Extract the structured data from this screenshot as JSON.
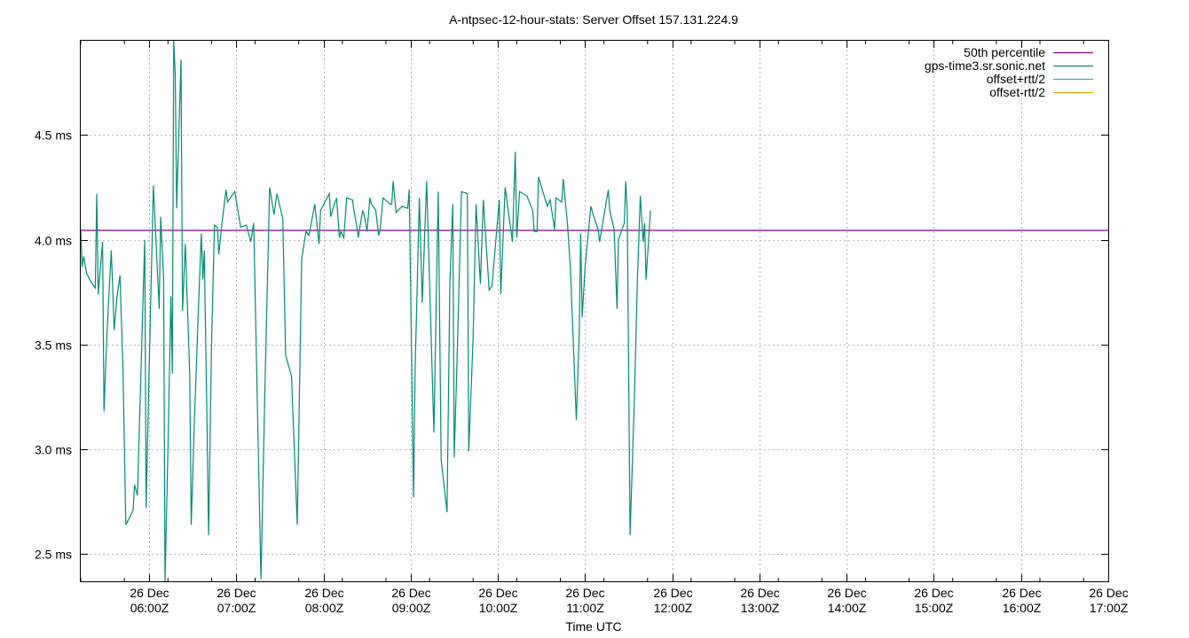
{
  "chart_data": {
    "type": "line",
    "title": "A-ntpsec-12-hour-stats: Server Offset 157.131.224.9",
    "xlabel": "Time UTC",
    "ylabel": "",
    "grid": true,
    "legend_position": "top-right",
    "x_range": [
      "2023-12-26T05:13Z",
      "2023-12-26T17:00Z"
    ],
    "ylim": [
      2.37,
      4.95
    ],
    "y_ticks": [
      {
        "value": 2.5,
        "label": "2.5 ms"
      },
      {
        "value": 3.0,
        "label": "3.0 ms"
      },
      {
        "value": 3.5,
        "label": "3.5 ms"
      },
      {
        "value": 4.0,
        "label": "4.0 ms"
      },
      {
        "value": 4.5,
        "label": "4.5 ms"
      }
    ],
    "x_ticks": [
      {
        "time": "06:00",
        "line1": "26 Dec",
        "line2": "06:00Z"
      },
      {
        "time": "07:00",
        "line1": "26 Dec",
        "line2": "07:00Z"
      },
      {
        "time": "08:00",
        "line1": "26 Dec",
        "line2": "08:00Z"
      },
      {
        "time": "09:00",
        "line1": "26 Dec",
        "line2": "09:00Z"
      },
      {
        "time": "10:00",
        "line1": "26 Dec",
        "line2": "10:00Z"
      },
      {
        "time": "11:00",
        "line1": "26 Dec",
        "line2": "11:00Z"
      },
      {
        "time": "12:00",
        "line1": "26 Dec",
        "line2": "12:00Z"
      },
      {
        "time": "13:00",
        "line1": "26 Dec",
        "line2": "13:00Z"
      },
      {
        "time": "14:00",
        "line1": "26 Dec",
        "line2": "14:00Z"
      },
      {
        "time": "15:00",
        "line1": "26 Dec",
        "line2": "15:00Z"
      },
      {
        "time": "16:00",
        "line1": "26 Dec",
        "line2": "16:00Z"
      },
      {
        "time": "17:00",
        "line1": "26 Dec",
        "line2": "17:00Z"
      }
    ],
    "series": [
      {
        "name": "50th percentile",
        "color": "#800080",
        "points": [
          [
            "05:13",
            4.045
          ],
          [
            "17:00",
            4.045
          ]
        ]
      },
      {
        "name": "gps-time3.sr.sonic.net",
        "color": "#008b74",
        "points": [
          [
            "05:13",
            4.05
          ],
          [
            "05:14",
            3.87
          ],
          [
            "05:15",
            3.92
          ],
          [
            "05:17",
            3.84
          ],
          [
            "05:20",
            3.8
          ],
          [
            "05:23",
            3.77
          ],
          [
            "05:24",
            4.22
          ],
          [
            "05:25",
            3.74
          ],
          [
            "05:28",
            3.99
          ],
          [
            "05:29",
            3.18
          ],
          [
            "05:31",
            3.55
          ],
          [
            "05:34",
            3.95
          ],
          [
            "05:36",
            3.57
          ],
          [
            "05:38",
            3.73
          ],
          [
            "05:40",
            3.83
          ],
          [
            "05:42",
            3.4
          ],
          [
            "05:44",
            2.64
          ],
          [
            "05:47",
            2.68
          ],
          [
            "05:49",
            2.71
          ],
          [
            "05:50",
            2.83
          ],
          [
            "05:52",
            2.78
          ],
          [
            "05:57",
            4.0
          ],
          [
            "05:58",
            2.72
          ],
          [
            "06:00",
            3.37
          ],
          [
            "06:03",
            4.26
          ],
          [
            "06:07",
            3.67
          ],
          [
            "06:08",
            4.11
          ],
          [
            "06:10",
            3.82
          ],
          [
            "06:11",
            2.37
          ],
          [
            "06:13",
            3.0
          ],
          [
            "06:15",
            3.73
          ],
          [
            "06:16",
            3.36
          ],
          [
            "06:17",
            4.95
          ],
          [
            "06:18",
            4.79
          ],
          [
            "06:19",
            4.15
          ],
          [
            "06:22",
            4.86
          ],
          [
            "06:23",
            3.66
          ],
          [
            "06:25",
            3.98
          ],
          [
            "06:28",
            3.36
          ],
          [
            "06:29",
            2.64
          ],
          [
            "06:31",
            3.1
          ],
          [
            "06:34",
            3.68
          ],
          [
            "06:36",
            4.03
          ],
          [
            "06:37",
            3.81
          ],
          [
            "06:38",
            3.95
          ],
          [
            "06:40",
            3.07
          ],
          [
            "06:41",
            2.59
          ],
          [
            "06:43",
            3.5
          ],
          [
            "06:45",
            4.07
          ],
          [
            "06:47",
            4.06
          ],
          [
            "06:48",
            3.93
          ],
          [
            "06:50",
            4.07
          ],
          [
            "06:53",
            4.24
          ],
          [
            "06:54",
            4.18
          ],
          [
            "06:56",
            4.2
          ],
          [
            "06:59",
            4.23
          ],
          [
            "07:03",
            4.06
          ],
          [
            "07:07",
            4.07
          ],
          [
            "07:10",
            3.99
          ],
          [
            "07:12",
            4.08
          ],
          [
            "07:17",
            2.38
          ],
          [
            "07:20",
            3.37
          ],
          [
            "07:23",
            4.25
          ],
          [
            "07:26",
            4.12
          ],
          [
            "07:28",
            4.22
          ],
          [
            "07:32",
            4.1
          ],
          [
            "07:34",
            3.45
          ],
          [
            "07:38",
            3.35
          ],
          [
            "07:42",
            2.64
          ],
          [
            "07:45",
            3.91
          ],
          [
            "07:48",
            4.04
          ],
          [
            "07:50",
            4.02
          ],
          [
            "07:54",
            4.17
          ],
          [
            "07:57",
            3.98
          ],
          [
            "07:58",
            4.14
          ],
          [
            "08:04",
            4.22
          ],
          [
            "08:05",
            4.11
          ],
          [
            "08:07",
            4.16
          ],
          [
            "08:09",
            4.2
          ],
          [
            "08:11",
            4.01
          ],
          [
            "08:12",
            4.04
          ],
          [
            "08:14",
            4.01
          ],
          [
            "08:16",
            4.2
          ],
          [
            "08:20",
            4.19
          ],
          [
            "08:21",
            4.14
          ],
          [
            "08:23",
            4.06
          ],
          [
            "08:24",
            4.01
          ],
          [
            "08:25",
            4.06
          ],
          [
            "08:27",
            4.14
          ],
          [
            "08:28",
            4.12
          ],
          [
            "08:30",
            4.04
          ],
          [
            "08:32",
            4.2
          ],
          [
            "08:33",
            4.17
          ],
          [
            "08:36",
            4.14
          ],
          [
            "08:38",
            4.02
          ],
          [
            "08:39",
            4.05
          ],
          [
            "08:41",
            4.2
          ],
          [
            "08:46",
            4.17
          ],
          [
            "08:47",
            4.17
          ],
          [
            "08:48",
            4.28
          ],
          [
            "08:50",
            4.13
          ],
          [
            "08:54",
            4.16
          ],
          [
            "08:58",
            4.15
          ],
          [
            "08:59",
            4.24
          ],
          [
            "09:02",
            2.77
          ],
          [
            "09:03",
            3.35
          ],
          [
            "09:06",
            4.2
          ],
          [
            "09:08",
            3.7
          ],
          [
            "09:11",
            4.28
          ],
          [
            "09:14",
            3.57
          ],
          [
            "09:16",
            3.08
          ],
          [
            "09:19",
            4.23
          ],
          [
            "09:21",
            2.95
          ],
          [
            "09:25",
            2.7
          ],
          [
            "09:27",
            3.79
          ],
          [
            "09:29",
            4.17
          ],
          [
            "09:30",
            2.96
          ],
          [
            "09:32",
            3.44
          ],
          [
            "09:35",
            4.23
          ],
          [
            "09:39",
            4.22
          ],
          [
            "09:40",
            2.99
          ],
          [
            "09:43",
            3.53
          ],
          [
            "09:45",
            4.17
          ],
          [
            "09:48",
            3.79
          ],
          [
            "09:50",
            4.19
          ],
          [
            "09:54",
            3.76
          ],
          [
            "09:56",
            3.78
          ],
          [
            "10:01",
            4.19
          ],
          [
            "10:02",
            3.74
          ],
          [
            "10:05",
            4.25
          ],
          [
            "10:10",
            3.99
          ],
          [
            "10:12",
            4.42
          ],
          [
            "10:13",
            4.01
          ],
          [
            "10:15",
            4.23
          ],
          [
            "10:20",
            4.21
          ],
          [
            "10:24",
            4.14
          ],
          [
            "10:25",
            4.04
          ],
          [
            "10:27",
            4.04
          ],
          [
            "10:28",
            4.3
          ],
          [
            "10:34",
            4.16
          ],
          [
            "10:36",
            4.19
          ],
          [
            "10:39",
            4.05
          ],
          [
            "10:40",
            4.2
          ],
          [
            "10:44",
            4.18
          ],
          [
            "10:45",
            4.29
          ],
          [
            "10:48",
            4.07
          ],
          [
            "10:50",
            3.85
          ],
          [
            "10:54",
            3.14
          ],
          [
            "10:56",
            3.55
          ],
          [
            "10:57",
            4.03
          ],
          [
            "10:58",
            3.63
          ],
          [
            "11:00",
            3.87
          ],
          [
            "11:04",
            4.16
          ],
          [
            "11:06",
            4.11
          ],
          [
            "11:09",
            4.05
          ],
          [
            "11:10",
            3.99
          ],
          [
            "11:16",
            4.24
          ],
          [
            "11:17",
            4.14
          ],
          [
            "11:20",
            4.05
          ],
          [
            "11:22",
            3.67
          ],
          [
            "11:23",
            4.0
          ],
          [
            "11:27",
            4.08
          ],
          [
            "11:28",
            4.28
          ],
          [
            "11:29",
            4.14
          ],
          [
            "11:31",
            2.59
          ],
          [
            "11:34",
            3.25
          ],
          [
            "11:36",
            3.8
          ],
          [
            "11:38",
            4.21
          ],
          [
            "11:40",
            3.99
          ],
          [
            "11:41",
            4.08
          ],
          [
            "11:42",
            3.81
          ],
          [
            "11:45",
            4.14
          ]
        ]
      },
      {
        "name": "offset+rtt/2",
        "color": "#3c9fd6",
        "points": []
      },
      {
        "name": "offset-rtt/2",
        "color": "#e6a800",
        "points": []
      }
    ]
  }
}
